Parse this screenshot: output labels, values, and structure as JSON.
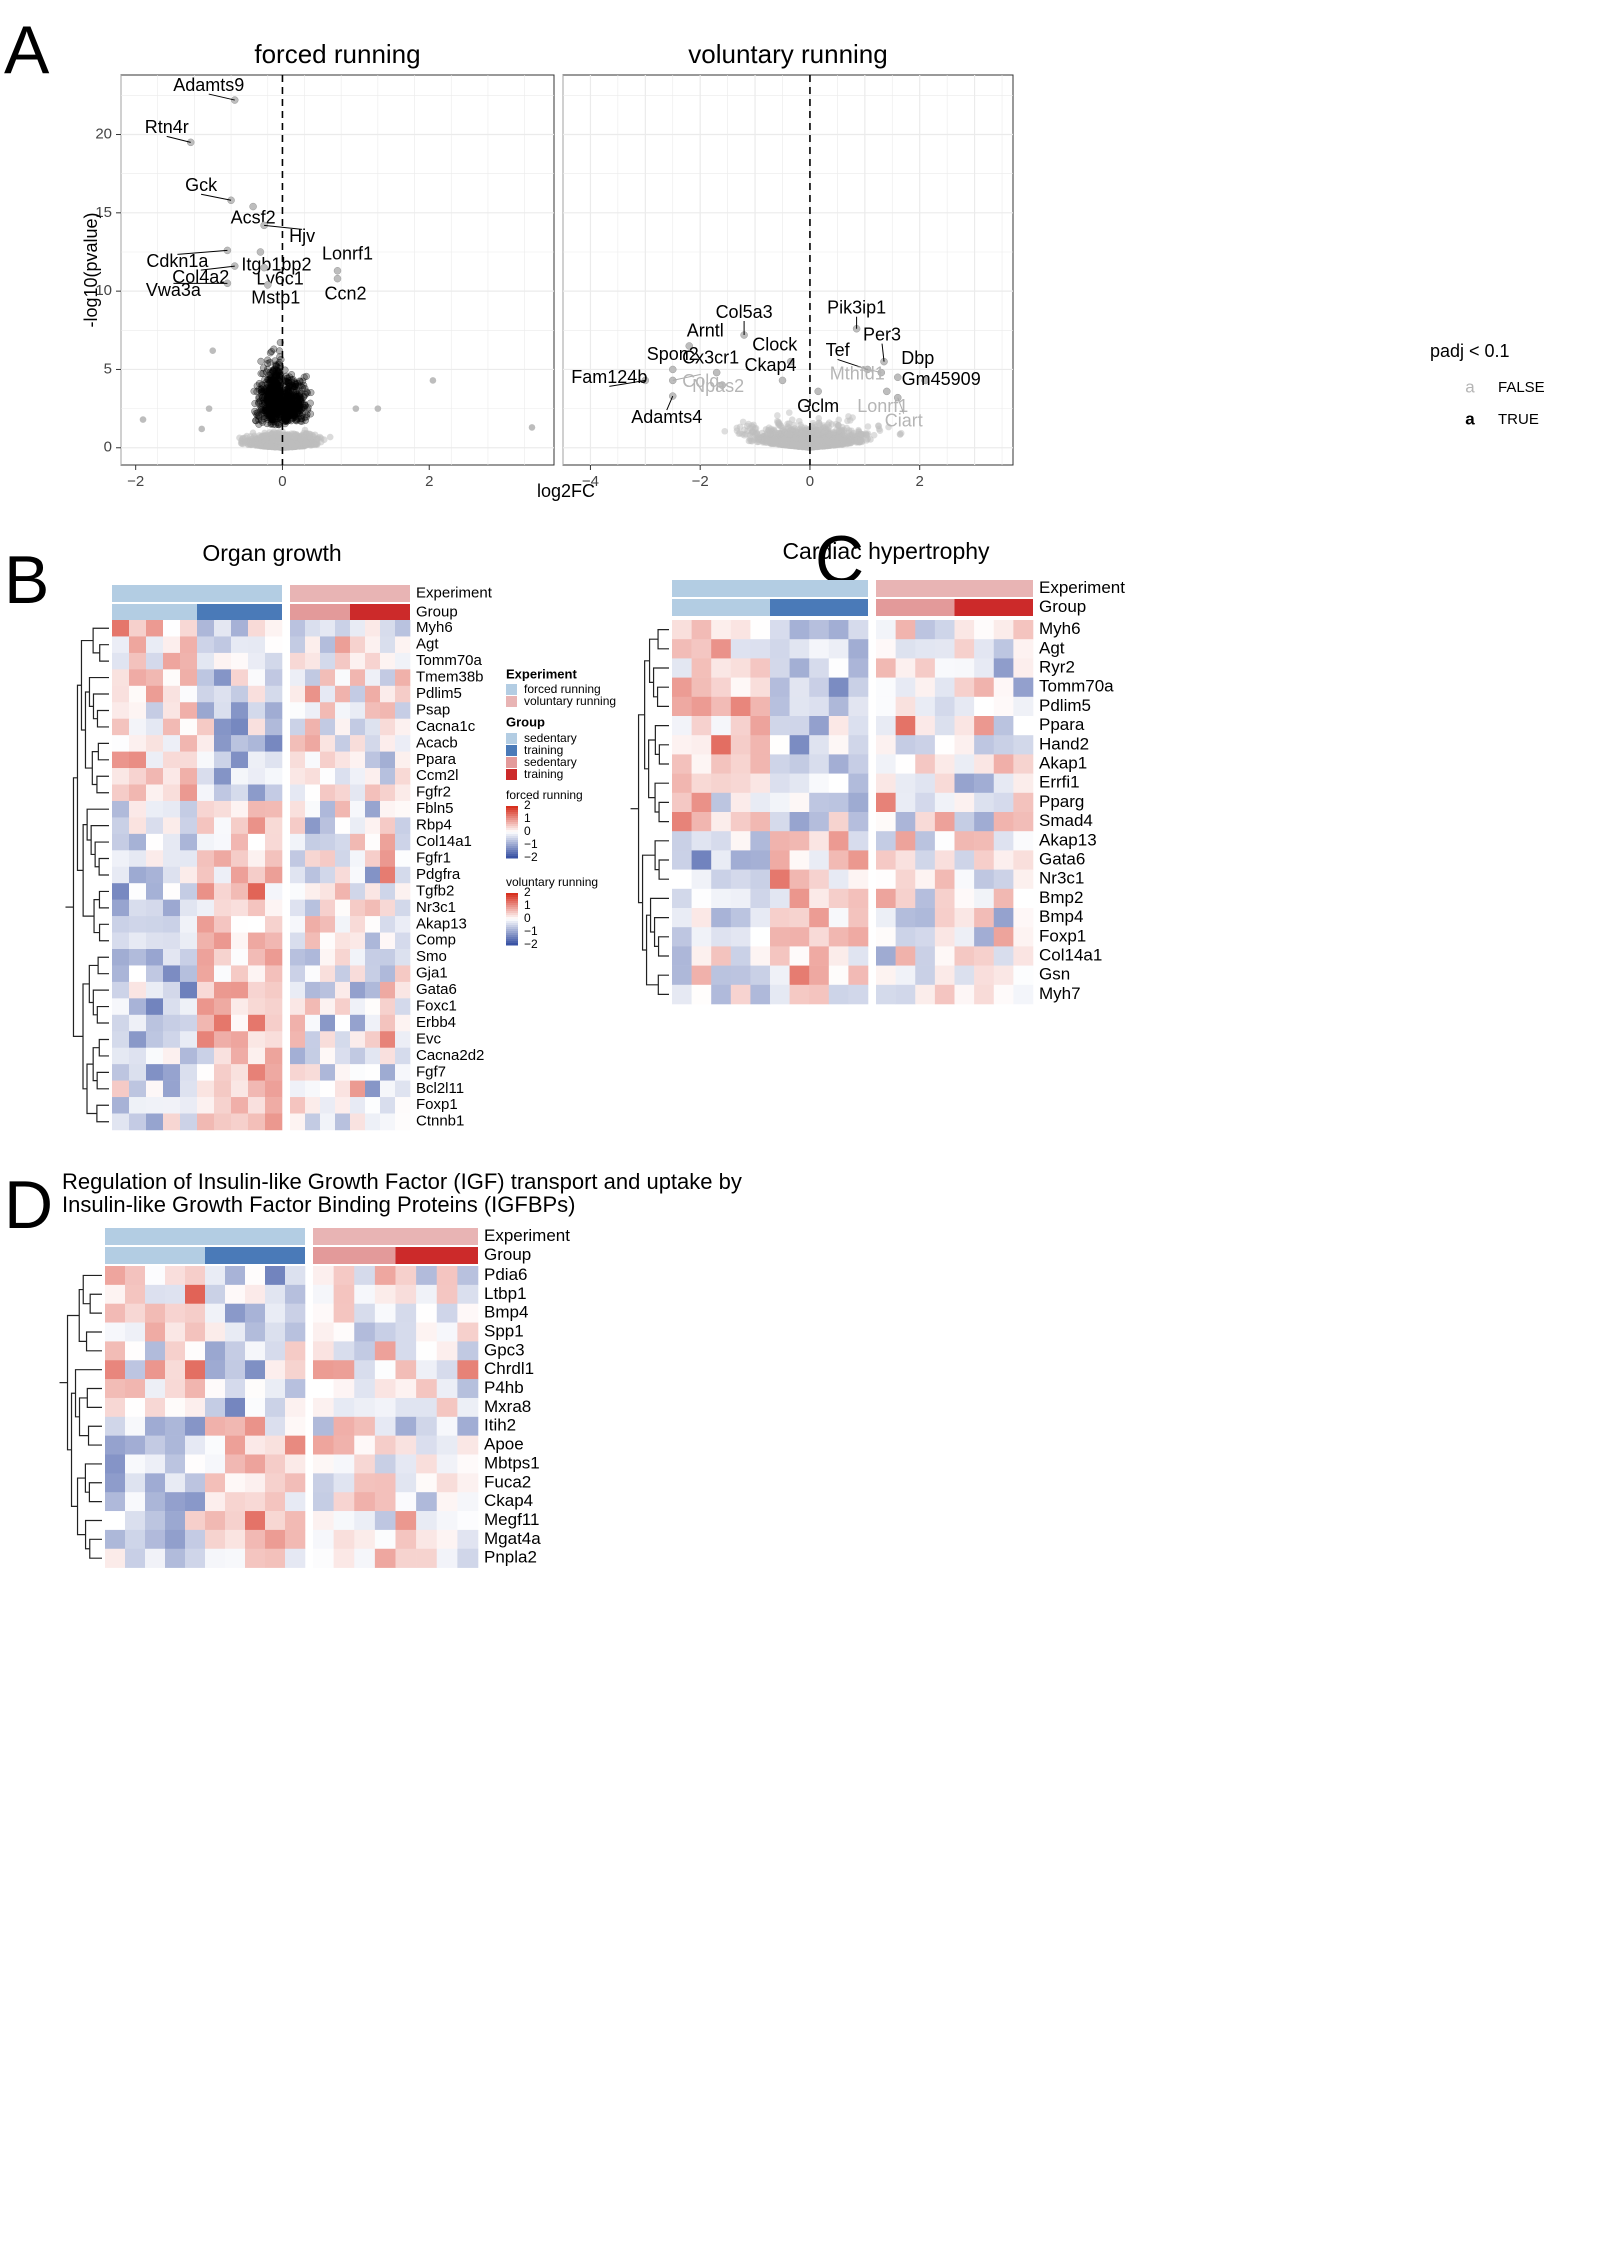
{
  "panel_letters": [
    "A",
    "B",
    "C",
    "D"
  ],
  "volcano": {
    "xlabel": "log2FC",
    "ylabel": "-log10(pvalue)",
    "legend_title": "padj < 0.1",
    "legend_glyph": "a",
    "legend_false": "FALSE",
    "legend_true": "TRUE",
    "colors": {
      "sig": "#000000",
      "nonsig": "#bdbdbd",
      "panel_bg": "#ffffff",
      "grid": "#ebebeb"
    }
  },
  "heat": {
    "experiment_label": "Experiment",
    "group_label": "Group",
    "legend_experiment_title": "Experiment",
    "legend_experiment_items": [
      "forced running",
      "voluntary running"
    ],
    "legend_group_title": "Group",
    "legend_group_items": [
      "sedentary",
      "training",
      "sedentary",
      "training"
    ],
    "legend_scale_titles": [
      "forced running",
      "voluntary running"
    ],
    "legend_scale_ticks": [
      "2",
      "1",
      "0",
      "−1",
      "−2"
    ],
    "colors": {
      "exp_forced": "#b3cde3",
      "exp_voluntary": "#e8b4b4",
      "grp_forced_sed": "#b3cde3",
      "grp_forced_train": "#4a7ab8",
      "grp_vol_sed": "#e39a9a",
      "grp_vol_train": "#cc2a2a",
      "low": "#3a53a4",
      "mid": "#ffffff",
      "high": "#d7301f"
    }
  },
  "chart_data": [
    {
      "type": "scatter",
      "title": "forced running",
      "xlabel": "log2FC",
      "ylabel": "-log10(pvalue)",
      "xlim": [
        -2.2,
        3.7
      ],
      "ylim": [
        -1.1,
        23.8
      ],
      "xticks": [
        -2,
        0,
        2
      ],
      "yticks": [
        0,
        5,
        10,
        15,
        20
      ],
      "labelled_genes": [
        {
          "gene": "Adamts9",
          "x": -0.65,
          "y": 22.2
        },
        {
          "gene": "Rtn4r",
          "x": -1.25,
          "y": 19.5
        },
        {
          "gene": "Gck",
          "x": -0.7,
          "y": 15.8
        },
        {
          "gene": "Acsf2",
          "x": -0.4,
          "y": 15.4
        },
        {
          "gene": "Hjv",
          "x": -0.25,
          "y": 14.2
        },
        {
          "gene": "Cdkn1a",
          "x": -0.75,
          "y": 12.6
        },
        {
          "gene": "Itgb1bp2",
          "x": -0.3,
          "y": 12.5
        },
        {
          "gene": "Col4a2",
          "x": -0.65,
          "y": 11.6
        },
        {
          "gene": "Ly6c1",
          "x": -0.25,
          "y": 11.5
        },
        {
          "gene": "Lonrf1",
          "x": 0.75,
          "y": 11.3
        },
        {
          "gene": "Vwa3a",
          "x": -0.75,
          "y": 10.5
        },
        {
          "gene": "Mstb1",
          "x": -0.2,
          "y": 10.4
        },
        {
          "gene": "Ccn2",
          "x": 0.75,
          "y": 10.8
        }
      ],
      "significant_x_range": [
        -1.2,
        1.5
      ],
      "significant_y_max": 15
    },
    {
      "type": "scatter",
      "title": "voluntary running",
      "xlabel": "log2FC",
      "ylabel": "-log10(pvalue)",
      "xlim": [
        -4.5,
        3.7
      ],
      "ylim": [
        -1.1,
        23.8
      ],
      "xticks": [
        -4,
        -2,
        0,
        2
      ],
      "yticks": [
        0,
        5,
        10,
        15,
        20
      ],
      "labelled_genes": [
        {
          "gene": "Col5a3",
          "x": -1.2,
          "y": 7.2,
          "significant": true
        },
        {
          "gene": "Arntl",
          "x": -2.2,
          "y": 6.5,
          "significant": true
        },
        {
          "gene": "Pik3ip1",
          "x": 0.85,
          "y": 7.6,
          "significant": true
        },
        {
          "gene": "Per3",
          "x": 1.35,
          "y": 5.5,
          "significant": true
        },
        {
          "gene": "Clock",
          "x": -0.35,
          "y": 5.5,
          "significant": true
        },
        {
          "gene": "Spon2",
          "x": -2.5,
          "y": 5.0,
          "significant": true
        },
        {
          "gene": "Cx3cr1",
          "x": -1.7,
          "y": 4.8,
          "significant": true
        },
        {
          "gene": "Tef",
          "x": 1.05,
          "y": 5.0,
          "significant": true
        },
        {
          "gene": "Dbp",
          "x": 1.6,
          "y": 4.5,
          "significant": true
        },
        {
          "gene": "Ckap4",
          "x": -0.5,
          "y": 4.3,
          "significant": true
        },
        {
          "gene": "Mthfd1",
          "x": 1.3,
          "y": 4.8,
          "significant": false
        },
        {
          "gene": "Gm45909",
          "x": 2.1,
          "y": 4.3,
          "significant": true
        },
        {
          "gene": "Fam124b",
          "x": -3.0,
          "y": 4.3,
          "significant": true
        },
        {
          "gene": "Colq",
          "x": -2.5,
          "y": 4.3,
          "significant": false
        },
        {
          "gene": "Npas2",
          "x": -1.6,
          "y": 4.0,
          "significant": false
        },
        {
          "gene": "Lonrf1",
          "x": 1.4,
          "y": 3.6,
          "significant": false
        },
        {
          "gene": "Gclm",
          "x": 0.15,
          "y": 3.6,
          "significant": true
        },
        {
          "gene": "Adamts4",
          "x": -2.5,
          "y": 3.3,
          "significant": true
        },
        {
          "gene": "Ciart",
          "x": 1.6,
          "y": 3.2,
          "significant": false
        }
      ]
    },
    {
      "type": "heatmap",
      "title": "Organ growth",
      "columns": {
        "forced_sedentary": 5,
        "forced_training": 5,
        "voluntary_sedentary": 4,
        "voluntary_training": 4
      },
      "rows": [
        "Myh6",
        "Agt",
        "Tomm70a",
        "Tmem38b",
        "Pdlim5",
        "Psap",
        "Cacna1c",
        "Acacb",
        "Ppara",
        "Ccm2l",
        "Fgfr2",
        "Fbln5",
        "Rbp4",
        "Col14a1",
        "Fgfr1",
        "Pdgfra",
        "Tgfb2",
        "Nr3c1",
        "Akap13",
        "Comp",
        "Smo",
        "Gja1",
        "Gata6",
        "Foxc1",
        "Erbb4",
        "Evc",
        "Cacna2d2",
        "Fgf7",
        "Bcl2l11",
        "Foxp1",
        "Ctnnb1"
      ],
      "scale_range": [
        -2,
        2
      ]
    },
    {
      "type": "heatmap",
      "title": "Cardiac hypertrophy",
      "columns": {
        "forced_sedentary": 5,
        "forced_training": 5,
        "voluntary_sedentary": 4,
        "voluntary_training": 4
      },
      "rows": [
        "Myh6",
        "Agt",
        "Ryr2",
        "Tomm70a",
        "Pdlim5",
        "Ppara",
        "Hand2",
        "Akap1",
        "Errfi1",
        "Pparg",
        "Smad4",
        "Akap13",
        "Gata6",
        "Nr3c1",
        "Bmp2",
        "Bmp4",
        "Foxp1",
        "Col14a1",
        "Gsn",
        "Myh7"
      ],
      "scale_range": [
        -2,
        2
      ]
    },
    {
      "type": "heatmap",
      "title": "Regulation of Insulin-like Growth Factor (IGF) transport and uptake by Insulin-like Growth Factor Binding Proteins (IGFBPs)",
      "columns": {
        "forced_sedentary": 5,
        "forced_training": 5,
        "voluntary_sedentary": 4,
        "voluntary_training": 4
      },
      "rows": [
        "Pdia6",
        "Ltbp1",
        "Bmp4",
        "Spp1",
        "Gpc3",
        "Chrdl1",
        "P4hb",
        "Mxra8",
        "Itih2",
        "Apoe",
        "Mbtps1",
        "Fuca2",
        "Ckap4",
        "Megf11",
        "Mgat4a",
        "Pnpla2"
      ],
      "scale_range": [
        -2,
        2
      ]
    }
  ]
}
